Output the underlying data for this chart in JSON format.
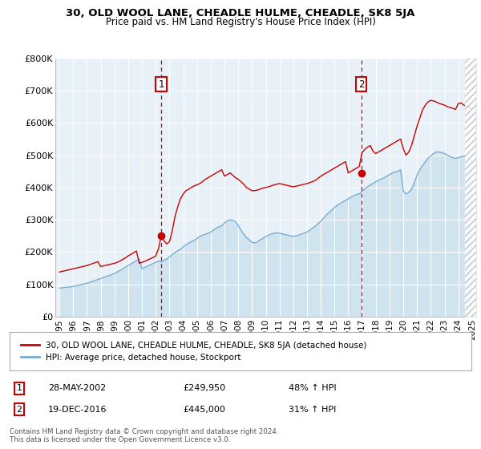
{
  "title": "30, OLD WOOL LANE, CHEADLE HULME, CHEADLE, SK8 5JA",
  "subtitle": "Price paid vs. HM Land Registry's House Price Index (HPI)",
  "ylim": [
    0,
    800000
  ],
  "yticks": [
    0,
    100000,
    200000,
    300000,
    400000,
    500000,
    600000,
    700000,
    800000
  ],
  "ytick_labels": [
    "£0",
    "£100K",
    "£200K",
    "£300K",
    "£400K",
    "£500K",
    "£600K",
    "£700K",
    "£800K"
  ],
  "xlim_start": 1994.7,
  "xlim_end": 2025.3,
  "years_tick": [
    1995,
    1996,
    1997,
    1998,
    1999,
    2000,
    2001,
    2002,
    2003,
    2004,
    2005,
    2006,
    2007,
    2008,
    2009,
    2010,
    2011,
    2012,
    2013,
    2014,
    2015,
    2016,
    2017,
    2018,
    2019,
    2020,
    2021,
    2022,
    2023,
    2024,
    2025
  ],
  "hpi_x": [
    1995.0,
    1995.1,
    1995.2,
    1995.3,
    1995.4,
    1995.5,
    1995.6,
    1995.7,
    1995.8,
    1995.9,
    1996.0,
    1996.1,
    1996.2,
    1996.3,
    1996.4,
    1996.5,
    1996.6,
    1996.7,
    1996.8,
    1996.9,
    1997.0,
    1997.2,
    1997.4,
    1997.6,
    1997.8,
    1998.0,
    1998.2,
    1998.4,
    1998.6,
    1998.8,
    1999.0,
    1999.2,
    1999.4,
    1999.6,
    1999.8,
    2000.0,
    2000.2,
    2000.4,
    2000.6,
    2000.8,
    2001.0,
    2001.2,
    2001.4,
    2001.6,
    2001.8,
    2002.0,
    2002.2,
    2002.4,
    2002.6,
    2002.8,
    2003.0,
    2003.2,
    2003.4,
    2003.6,
    2003.8,
    2004.0,
    2004.2,
    2004.4,
    2004.6,
    2004.8,
    2005.0,
    2005.2,
    2005.4,
    2005.6,
    2005.8,
    2006.0,
    2006.2,
    2006.4,
    2006.6,
    2006.8,
    2007.0,
    2007.2,
    2007.4,
    2007.6,
    2007.8,
    2008.0,
    2008.2,
    2008.4,
    2008.6,
    2008.8,
    2009.0,
    2009.2,
    2009.4,
    2009.6,
    2009.8,
    2010.0,
    2010.2,
    2010.4,
    2010.6,
    2010.8,
    2011.0,
    2011.2,
    2011.4,
    2011.6,
    2011.8,
    2012.0,
    2012.2,
    2012.4,
    2012.6,
    2012.8,
    2013.0,
    2013.2,
    2013.4,
    2013.6,
    2013.8,
    2014.0,
    2014.2,
    2014.4,
    2014.6,
    2014.8,
    2015.0,
    2015.2,
    2015.4,
    2015.6,
    2015.8,
    2016.0,
    2016.2,
    2016.4,
    2016.6,
    2016.8,
    2017.0,
    2017.2,
    2017.4,
    2017.6,
    2017.8,
    2018.0,
    2018.2,
    2018.4,
    2018.6,
    2018.8,
    2019.0,
    2019.2,
    2019.4,
    2019.6,
    2019.8,
    2020.0,
    2020.2,
    2020.4,
    2020.6,
    2020.8,
    2021.0,
    2021.2,
    2021.4,
    2021.6,
    2021.8,
    2022.0,
    2022.2,
    2022.4,
    2022.6,
    2022.8,
    2023.0,
    2023.2,
    2023.4,
    2023.6,
    2023.8,
    2024.0,
    2024.2,
    2024.4,
    2024.6,
    2024.8,
    2025.0
  ],
  "hpi_y": [
    88000,
    88500,
    89000,
    89500,
    90000,
    90500,
    91000,
    91500,
    92000,
    92500,
    93000,
    94000,
    95000,
    96000,
    97000,
    98000,
    99000,
    100000,
    101000,
    102000,
    103000,
    106000,
    109000,
    112000,
    115000,
    118000,
    121000,
    124000,
    127000,
    130000,
    133000,
    138000,
    143000,
    148000,
    153000,
    158000,
    163000,
    168000,
    173000,
    178000,
    148000,
    152000,
    156000,
    160000,
    164000,
    168000,
    172000,
    169000,
    175000,
    178000,
    185000,
    192000,
    198000,
    204000,
    208000,
    216000,
    222000,
    228000,
    232000,
    236000,
    242000,
    248000,
    252000,
    255000,
    258000,
    262000,
    268000,
    274000,
    278000,
    282000,
    290000,
    296000,
    300000,
    298000,
    294000,
    282000,
    268000,
    255000,
    245000,
    238000,
    230000,
    228000,
    232000,
    238000,
    242000,
    248000,
    252000,
    256000,
    258000,
    260000,
    258000,
    256000,
    254000,
    252000,
    250000,
    248000,
    250000,
    252000,
    256000,
    258000,
    262000,
    268000,
    274000,
    280000,
    288000,
    295000,
    305000,
    315000,
    322000,
    330000,
    338000,
    345000,
    350000,
    355000,
    360000,
    365000,
    370000,
    375000,
    378000,
    380000,
    388000,
    395000,
    402000,
    408000,
    412000,
    418000,
    422000,
    426000,
    430000,
    435000,
    440000,
    445000,
    448000,
    450000,
    455000,
    388000,
    380000,
    385000,
    395000,
    415000,
    438000,
    455000,
    468000,
    480000,
    490000,
    498000,
    505000,
    510000,
    510000,
    508000,
    505000,
    500000,
    496000,
    492000,
    490000,
    492000,
    495000,
    497000,
    500000,
    502000,
    503000
  ],
  "price_x": [
    1995.0,
    1995.1,
    1995.2,
    1995.3,
    1995.4,
    1995.5,
    1995.6,
    1995.7,
    1995.8,
    1995.9,
    1996.0,
    1996.2,
    1996.4,
    1996.6,
    1996.8,
    1997.0,
    1997.2,
    1997.4,
    1997.6,
    1997.8,
    1998.0,
    1998.2,
    1998.4,
    1998.6,
    1998.8,
    1999.0,
    1999.2,
    1999.4,
    1999.6,
    1999.8,
    2000.0,
    2000.2,
    2000.4,
    2000.6,
    2000.8,
    2001.0,
    2001.2,
    2001.4,
    2001.6,
    2001.8,
    2002.0,
    2002.2,
    2002.4,
    2002.6,
    2002.8,
    2003.0,
    2003.2,
    2003.4,
    2003.6,
    2003.8,
    2004.0,
    2004.2,
    2004.4,
    2004.6,
    2004.8,
    2005.0,
    2005.2,
    2005.4,
    2005.6,
    2005.8,
    2006.0,
    2006.2,
    2006.4,
    2006.6,
    2006.8,
    2007.0,
    2007.2,
    2007.4,
    2007.6,
    2007.8,
    2008.0,
    2008.2,
    2008.4,
    2008.6,
    2008.8,
    2009.0,
    2009.2,
    2009.4,
    2009.6,
    2009.8,
    2010.0,
    2010.2,
    2010.4,
    2010.6,
    2010.8,
    2011.0,
    2011.2,
    2011.4,
    2011.6,
    2011.8,
    2012.0,
    2012.2,
    2012.4,
    2012.6,
    2012.8,
    2013.0,
    2013.2,
    2013.4,
    2013.6,
    2013.8,
    2014.0,
    2014.2,
    2014.4,
    2014.6,
    2014.8,
    2015.0,
    2015.2,
    2015.4,
    2015.6,
    2015.8,
    2016.0,
    2016.2,
    2016.4,
    2016.6,
    2016.8,
    2017.0,
    2017.2,
    2017.4,
    2017.6,
    2017.8,
    2018.0,
    2018.2,
    2018.4,
    2018.6,
    2018.8,
    2019.0,
    2019.2,
    2019.4,
    2019.6,
    2019.8,
    2020.0,
    2020.2,
    2020.4,
    2020.6,
    2020.8,
    2021.0,
    2021.2,
    2021.4,
    2021.6,
    2021.8,
    2022.0,
    2022.2,
    2022.4,
    2022.6,
    2022.8,
    2023.0,
    2023.2,
    2023.4,
    2023.6,
    2023.8,
    2024.0,
    2024.2,
    2024.4,
    2024.6,
    2024.8,
    2025.0
  ],
  "price_y": [
    138000,
    139000,
    140000,
    141000,
    142000,
    143000,
    144000,
    145000,
    146000,
    147000,
    148000,
    150000,
    152000,
    154000,
    156000,
    158000,
    161000,
    164000,
    167000,
    170000,
    155000,
    157000,
    159000,
    161000,
    163000,
    165000,
    168000,
    172000,
    177000,
    182000,
    188000,
    193000,
    198000,
    203000,
    165000,
    168000,
    171000,
    175000,
    179000,
    183000,
    188000,
    210000,
    249950,
    235000,
    225000,
    232000,
    265000,
    310000,
    340000,
    365000,
    380000,
    390000,
    395000,
    400000,
    405000,
    408000,
    412000,
    418000,
    425000,
    430000,
    435000,
    440000,
    445000,
    450000,
    455000,
    435000,
    440000,
    445000,
    438000,
    430000,
    425000,
    418000,
    410000,
    400000,
    395000,
    390000,
    390000,
    392000,
    395000,
    398000,
    400000,
    402000,
    405000,
    408000,
    410000,
    412000,
    410000,
    408000,
    406000,
    404000,
    402000,
    404000,
    406000,
    408000,
    410000,
    412000,
    415000,
    418000,
    422000,
    428000,
    435000,
    440000,
    445000,
    450000,
    455000,
    460000,
    465000,
    470000,
    475000,
    480000,
    445000,
    450000,
    455000,
    460000,
    465000,
    508000,
    518000,
    525000,
    530000,
    512000,
    505000,
    510000,
    515000,
    520000,
    525000,
    530000,
    535000,
    540000,
    545000,
    550000,
    520000,
    500000,
    510000,
    530000,
    560000,
    590000,
    615000,
    640000,
    655000,
    665000,
    670000,
    668000,
    665000,
    660000,
    658000,
    655000,
    650000,
    648000,
    645000,
    642000,
    660000,
    662000,
    655000,
    652000,
    648000,
    645000
  ],
  "marker1_year": 2002.4,
  "marker1_price": 249950,
  "marker2_year": 2016.95,
  "marker2_price": 445000,
  "sale_color": "#cc0000",
  "hpi_color": "#7aadd4",
  "hpi_fill_color": "#d0e4f0",
  "background_color": "#e8f0f8",
  "marker_box_color": "#cc0000",
  "legend_label_sale": "30, OLD WOOL LANE, CHEADLE HULME, CHEADLE, SK8 5JA (detached house)",
  "legend_label_hpi": "HPI: Average price, detached house, Stockport",
  "ann1_date": "28-MAY-2002",
  "ann1_price": "£249,950",
  "ann1_pct": "48% ↑ HPI",
  "ann2_date": "19-DEC-2016",
  "ann2_price": "£445,000",
  "ann2_pct": "31% ↑ HPI",
  "footer": "Contains HM Land Registry data © Crown copyright and database right 2024.\nThis data is licensed under the Open Government Licence v3.0."
}
